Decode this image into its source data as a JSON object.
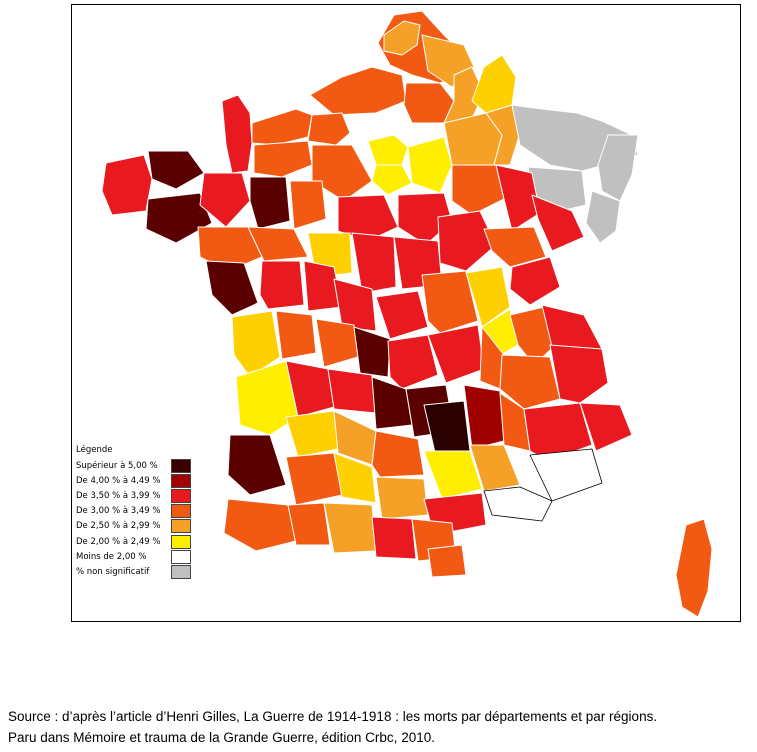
{
  "legend": {
    "title": "Légende",
    "items": [
      {
        "label": "Supérieur à 5,00 %",
        "color": "#3a0000"
      },
      {
        "label": "De 4,00 % à 4,49 %",
        "color": "#a00000"
      },
      {
        "label": "De 3,50 % à 3,99 %",
        "color": "#e8191f"
      },
      {
        "label": "De 3,00 % à 3,49 %",
        "color": "#f25a14"
      },
      {
        "label": "De 2,50 % à 2,99 %",
        "color": "#f5a027"
      },
      {
        "label": "De 2,00 % à 2,49 %",
        "color": "#ffee00"
      },
      {
        "label": "Moins de 2,00 %",
        "color": "#ffffff"
      },
      {
        "label": "% non significatif",
        "color": "#c0c0c0"
      }
    ]
  },
  "source": {
    "line1": "Source : d’après l’article d’Henri Gilles, La Guerre de 1914-1918 : les morts par départements et par régions.",
    "line2": "Paru dans Mémoire et trauma de la Grande Guerre, édition Crbc, 2010."
  }
}
